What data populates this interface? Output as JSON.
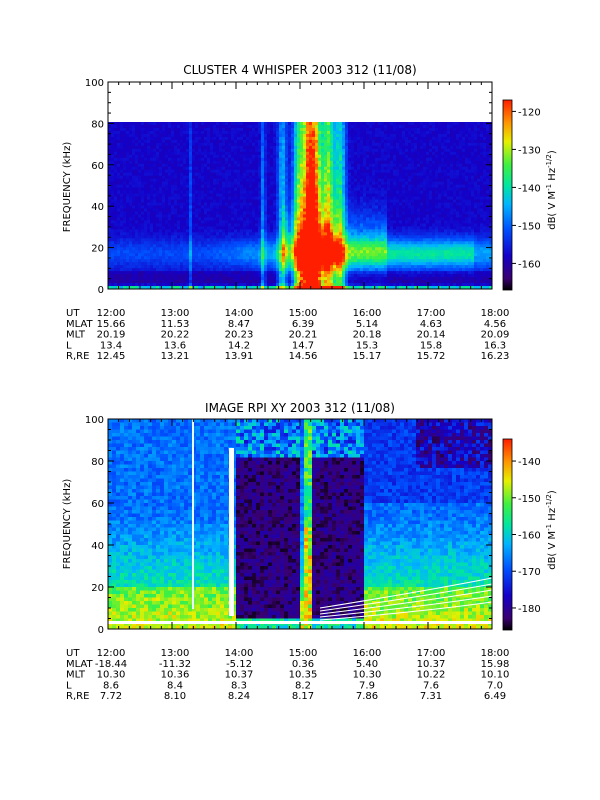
{
  "chart_data": [
    {
      "type": "heatmap",
      "title": "CLUSTER 4 WHISPER 2003 312 (11/08)",
      "ylabel": "FREQUENCY (kHz)",
      "ylim": [
        0,
        100
      ],
      "yticks": [
        "0",
        "20",
        "40",
        "60",
        "80",
        "100"
      ],
      "x_tick_labels": [
        "12:00",
        "13:00",
        "14:00",
        "15:00",
        "16:00",
        "17:00",
        "18:00"
      ],
      "data_max_frequency_khz": 80,
      "colorbar": {
        "label_main": "dB( V M",
        "label_exp1": "-1",
        "label_mid": " Hz",
        "label_exp2": "-1/2",
        "label_end": ")",
        "range": [
          -167,
          -117
        ],
        "ticks": [
          "-120",
          "-130",
          "-140",
          "-150",
          "-160"
        ],
        "tick_values": [
          -120,
          -130,
          -140,
          -150,
          -160
        ]
      },
      "ephemeris": [
        {
          "label": "UT",
          "values": [
            "12:00",
            "13:00",
            "14:00",
            "15:00",
            "16:00",
            "17:00",
            "18:00"
          ]
        },
        {
          "label": "MLAT",
          "values": [
            "15.66",
            "11.53",
            "8.47",
            "6.39",
            "5.14",
            "4.63",
            "4.56"
          ]
        },
        {
          "label": "MLT",
          "values": [
            "20.19",
            "20.22",
            "20.23",
            "20.21",
            "20.18",
            "20.14",
            "20.09"
          ]
        },
        {
          "label": "L",
          "values": [
            "13.4",
            "13.6",
            "14.2",
            "14.7",
            "15.3",
            "15.8",
            "16.3"
          ]
        },
        {
          "label": "R,RE",
          "values": [
            "12.45",
            "13.21",
            "13.91",
            "14.56",
            "15.17",
            "15.72",
            "16.23"
          ]
        }
      ]
    },
    {
      "type": "heatmap",
      "title": "IMAGE RPI XY 2003 312 (11/08)",
      "ylabel": "FREQUENCY (kHz)",
      "ylim": [
        0,
        100
      ],
      "yticks": [
        "0",
        "20",
        "40",
        "60",
        "80",
        "100"
      ],
      "x_tick_labels": [
        "12:00",
        "13:00",
        "14:00",
        "15:00",
        "16:00",
        "17:00",
        "18:00"
      ],
      "colorbar": {
        "label_main": "dB( V M",
        "label_exp1": "-1",
        "label_mid": " Hz",
        "label_exp2": "-1/2",
        "label_end": ")",
        "range": [
          -186,
          -134
        ],
        "ticks": [
          "-140",
          "-150",
          "-160",
          "-170",
          "-180"
        ],
        "tick_values": [
          -140,
          -150,
          -160,
          -170,
          -180
        ]
      },
      "ephemeris": [
        {
          "label": "UT",
          "values": [
            "12:00",
            "13:00",
            "14:00",
            "15:00",
            "16:00",
            "17:00",
            "18:00"
          ]
        },
        {
          "label": "MLAT",
          "values": [
            "-18.44",
            "-11.32",
            "-5.12",
            "0.36",
            "5.40",
            "10.37",
            "15.98"
          ]
        },
        {
          "label": "MLT",
          "values": [
            "10.30",
            "10.36",
            "10.37",
            "10.35",
            "10.30",
            "10.22",
            "10.10"
          ]
        },
        {
          "label": "L",
          "values": [
            "8.6",
            "8.4",
            "8.3",
            "8.2",
            "7.9",
            "7.6",
            "7.0"
          ]
        },
        {
          "label": "R,RE",
          "values": [
            "7.72",
            "8.10",
            "8.24",
            "8.17",
            "7.86",
            "7.31",
            "6.49"
          ]
        }
      ]
    }
  ]
}
